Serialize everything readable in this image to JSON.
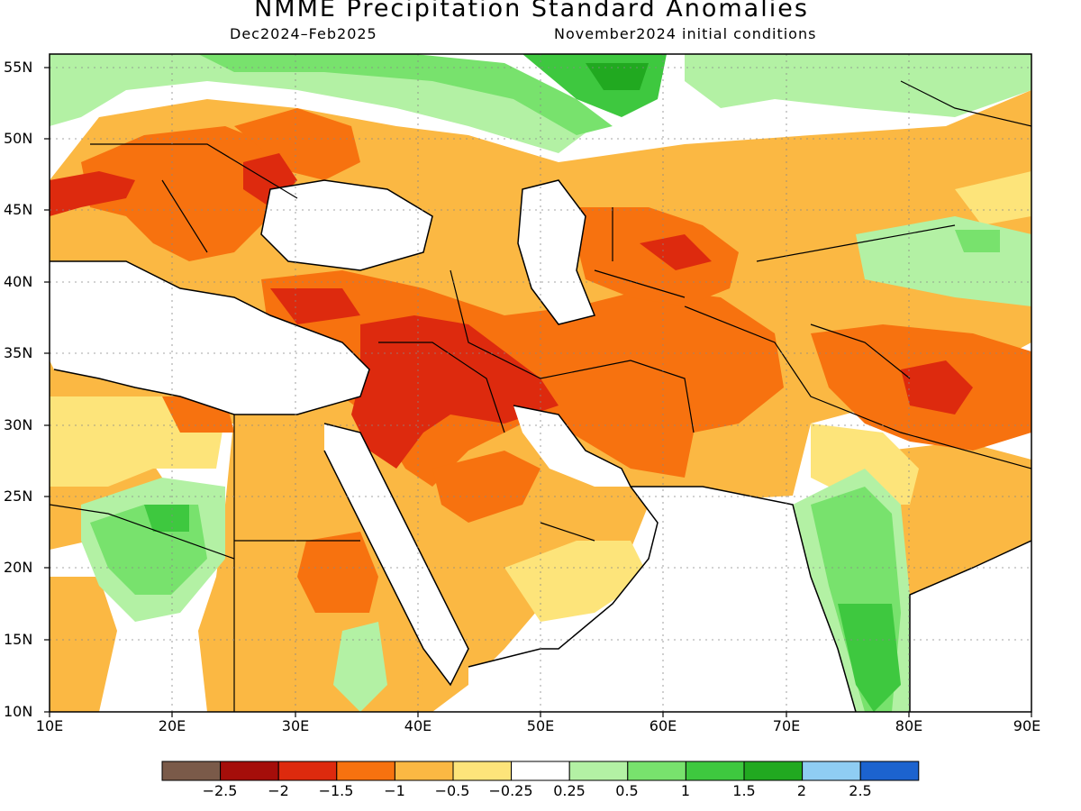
{
  "header": {
    "title": "NMME Precipitation Standard Anomalies",
    "period": "Dec2024–Feb2025",
    "init": "November2024 initial conditions"
  },
  "axes": {
    "lat_labels": [
      "55N",
      "50N",
      "45N",
      "40N",
      "35N",
      "30N",
      "25N",
      "20N",
      "15N",
      "10N"
    ],
    "lon_labels": [
      "10E",
      "20E",
      "30E",
      "40E",
      "50E",
      "60E",
      "70E",
      "80E",
      "90E"
    ]
  },
  "colorbar": {
    "labels": [
      "−2.5",
      "−2",
      "−1.5",
      "−1",
      "−0.5",
      "−0.25",
      "0.25",
      "0.5",
      "1",
      "1.5",
      "2",
      "2.5"
    ],
    "colors": [
      "#7a5a49",
      "#a50e0a",
      "#dd2a0e",
      "#f7720f",
      "#fbb843",
      "#fde47a",
      "#ffffff",
      "#b3f1a4",
      "#78e26d",
      "#3ec83f",
      "#21a920",
      "#8fcdf3",
      "#1c63cf"
    ]
  }
}
